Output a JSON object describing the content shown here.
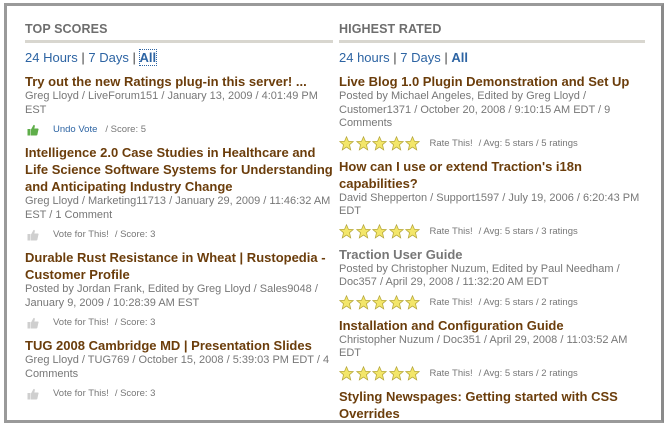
{
  "top_scores": {
    "heading": "TOP SCORES",
    "filters": [
      "24 Hours",
      "7 Days",
      "All"
    ],
    "active_filter": "All",
    "items": [
      {
        "title": "Try out the new Ratings plug-in this server! ...",
        "meta": "Greg Lloyd / LiveForum151 / January 13, 2009 / 4:01:49 PM EST",
        "vote_label": "Undo Vote",
        "score": "/ Score: 5",
        "voted": true
      },
      {
        "title": "Intelligence 2.0 Case Studies in Healthcare and Life Science Software Systems for Understanding and Anticipating Industry Change",
        "meta": "Greg Lloyd / Marketing11713 / January 29, 2009 / 11:46:32 AM EST / 1 Comment",
        "vote_label": "Vote for This!",
        "score": "/ Score: 3",
        "voted": false
      },
      {
        "title": "Durable Rust Resistance in Wheat | Rustopedia - Customer Profile",
        "meta": "Posted by Jordan Frank, Edited by Greg Lloyd / Sales9048 / January 9, 2009 / 10:28:39 AM EST",
        "vote_label": "Vote for This!",
        "score": "/ Score: 3",
        "voted": false
      },
      {
        "title": "TUG 2008 Cambridge MD | Presentation Slides",
        "meta": "Greg Lloyd / TUG769 / October 15, 2008 / 5:39:03 PM EDT / 4 Comments",
        "vote_label": "Vote for This!",
        "score": "/ Score: 3",
        "voted": false
      }
    ]
  },
  "highest_rated": {
    "heading": "HIGHEST RATED",
    "filters": [
      "24 hours",
      "7 Days",
      "All"
    ],
    "active_filter": "All",
    "items": [
      {
        "title": "Live Blog 1.0 Plugin Demonstration and Set Up",
        "meta": "Posted by Michael Angeles, Edited by Greg Lloyd / Customer1371 / October 20, 2008 / 9:10:15 AM EDT / 9 Comments",
        "rate_label": "Rate This!",
        "avg": "/ Avg: 5 stars / 5 ratings",
        "stars": 5,
        "visited": false
      },
      {
        "title": "How can I use or extend Traction's i18n capabilities?",
        "meta": "David Shepperton / Support1597 / July 19, 2006 / 6:20:43 PM EDT",
        "rate_label": "Rate This!",
        "avg": "/ Avg: 5 stars / 3 ratings",
        "stars": 5,
        "visited": false
      },
      {
        "title": "Traction User Guide",
        "meta": "Posted by Christopher Nuzum, Edited by Paul Needham / Doc357 / April 29, 2008 / 11:32:20 AM EDT",
        "rate_label": "Rate This!",
        "avg": "/ Avg: 5 stars / 2 ratings",
        "stars": 5,
        "visited": true
      },
      {
        "title": "Installation and Configuration Guide",
        "meta": "Christopher Nuzum / Doc351 / April 29, 2008 / 11:03:52 AM EDT",
        "rate_label": "Rate This!",
        "avg": "/ Avg: 5 stars / 2 ratings",
        "stars": 5,
        "visited": false
      },
      {
        "title": "Styling Newspages: Getting started with CSS Overrides",
        "visited": false
      }
    ]
  },
  "colors": {
    "title": "#6b3d0b",
    "link": "#2d64a3",
    "meta": "#777777",
    "star": "#f3e66a",
    "thumb_voted": "#5fae4a",
    "thumb_idle": "#cfcfcf"
  }
}
